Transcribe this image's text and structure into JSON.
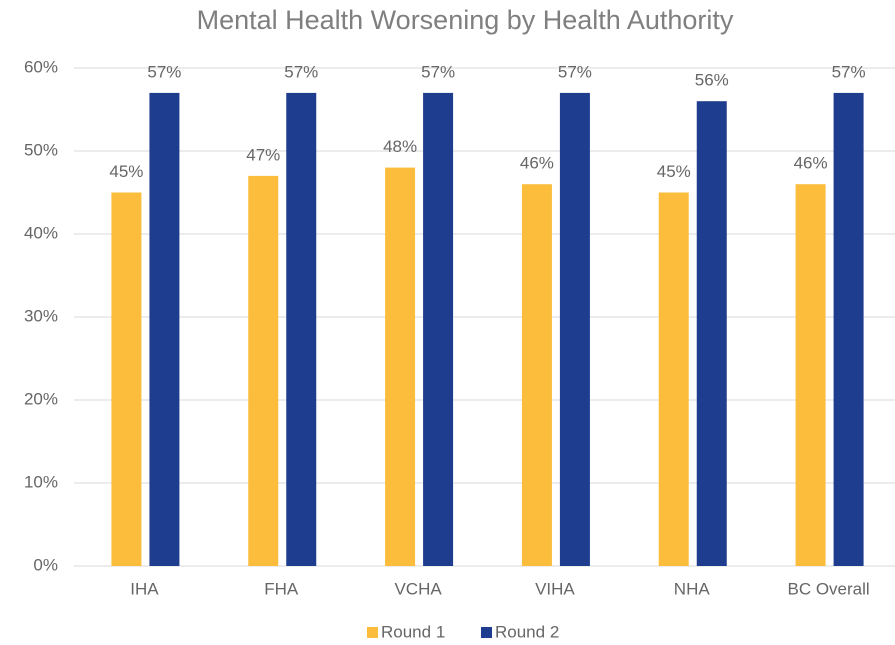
{
  "chart_data": {
    "type": "bar",
    "title": "Mental Health Worsening by Health Authority",
    "categories": [
      "IHA",
      "FHA",
      "VCHA",
      "VIHA",
      "NHA",
      "BC Overall"
    ],
    "series": [
      {
        "name": "Round 1",
        "color": "#fbbd3b",
        "values": [
          45,
          47,
          48,
          46,
          45,
          46
        ],
        "value_labels": [
          "45%",
          "47%",
          "48%",
          "46%",
          "45%",
          "46%"
        ]
      },
      {
        "name": "Round 2",
        "color": "#1f3d8f",
        "values": [
          57,
          57,
          57,
          57,
          56,
          57
        ],
        "value_labels": [
          "57%",
          "57%",
          "57%",
          "57%",
          "56%",
          "57%"
        ]
      }
    ],
    "ylim": [
      0,
      60
    ],
    "yticks": [
      {
        "value": 0,
        "label": "0%"
      },
      {
        "value": 10,
        "label": "10%"
      },
      {
        "value": 20,
        "label": "20%"
      },
      {
        "value": 30,
        "label": "30%"
      },
      {
        "value": 40,
        "label": "40%"
      },
      {
        "value": 50,
        "label": "50%"
      },
      {
        "value": 60,
        "label": "60%"
      }
    ],
    "grid": true,
    "legend": "bottom"
  }
}
